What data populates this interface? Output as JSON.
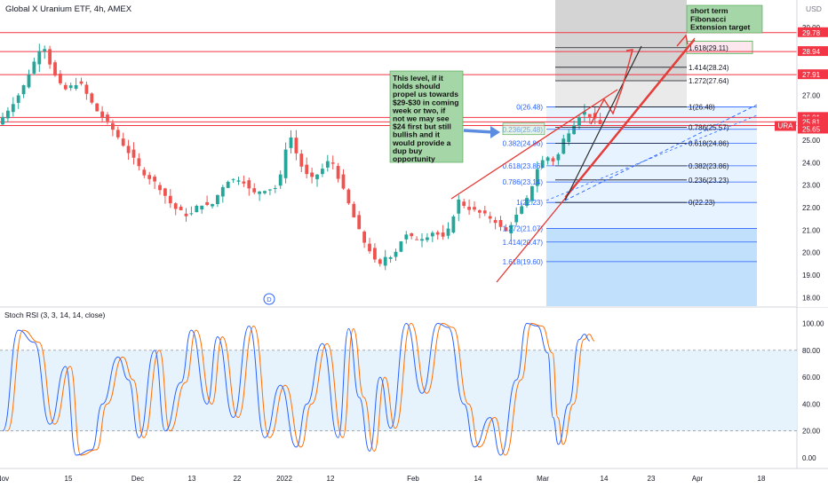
{
  "header": {
    "title": "Global X Uranium ETF, 4h, AMEX",
    "currency": "USD",
    "ticker": "URA",
    "last_price": "25.65"
  },
  "colors": {
    "up": "#26a69a",
    "down": "#ef5350",
    "stoch_k": "#2962ff",
    "stoch_d": "#ff6d00",
    "hline": "#f23645",
    "fib_blue": "#2962ff",
    "note_green": "#a5d6a7",
    "price_tag_red": "#f23645",
    "price_tag_blue": "#2962ff"
  },
  "chart_data": {
    "type": "candlestick",
    "symbol": "URA",
    "timeframe": "4h",
    "ylim": [
      17.6,
      30.4
    ],
    "y_ticks": [
      18,
      19,
      20,
      21,
      22,
      23,
      24,
      25,
      26,
      27,
      28,
      29,
      30
    ],
    "x_ticks": [
      "Nov",
      "15",
      "Dec",
      "13",
      "22",
      "2022",
      "12",
      "Feb",
      "14",
      "Mar",
      "14",
      "23",
      "Apr",
      "18"
    ],
    "close_path": [
      [
        0,
        25.9
      ],
      [
        4,
        27.2
      ],
      [
        7,
        28.8
      ],
      [
        8,
        29.4
      ],
      [
        10,
        28.0
      ],
      [
        12,
        27.2
      ],
      [
        15,
        27.6
      ],
      [
        18,
        26.4
      ],
      [
        21,
        25.6
      ],
      [
        24,
        24.6
      ],
      [
        27,
        23.6
      ],
      [
        30,
        23.0
      ],
      [
        33,
        22.0
      ],
      [
        36,
        21.6
      ],
      [
        38,
        22.2
      ],
      [
        40,
        22.0
      ],
      [
        43,
        23.2
      ],
      [
        46,
        23.3
      ],
      [
        48,
        22.6
      ],
      [
        50,
        22.8
      ],
      [
        53,
        22.9
      ],
      [
        55,
        25.4
      ],
      [
        57,
        24.0
      ],
      [
        59,
        23.2
      ],
      [
        61,
        23.6
      ],
      [
        63,
        24.2
      ],
      [
        65,
        23.0
      ],
      [
        67,
        21.8
      ],
      [
        69,
        20.6
      ],
      [
        71,
        19.9
      ],
      [
        72,
        19.2
      ],
      [
        73,
        19.8
      ],
      [
        75,
        19.9
      ],
      [
        77,
        20.8
      ],
      [
        79,
        20.6
      ],
      [
        81,
        20.7
      ],
      [
        83,
        21.0
      ],
      [
        84,
        20.5
      ],
      [
        86,
        21.2
      ],
      [
        87,
        22.4
      ],
      [
        89,
        22.0
      ],
      [
        91,
        21.8
      ],
      [
        93,
        21.6
      ],
      [
        95,
        21.3
      ],
      [
        96,
        20.8
      ],
      [
        98,
        21.5
      ],
      [
        100,
        22.2
      ],
      [
        101,
        22.6
      ],
      [
        102,
        23.6
      ],
      [
        104,
        24.3
      ],
      [
        106,
        24.0
      ],
      [
        107,
        24.9
      ],
      [
        109,
        25.6
      ],
      [
        111,
        26.3
      ],
      [
        113,
        26.0
      ],
      [
        114,
        25.7
      ]
    ],
    "series": [
      {
        "name": "Stoch RSI (3, 3, 14, 14, close)",
        "k_path": [
          [
            0,
            20
          ],
          [
            3,
            95
          ],
          [
            6,
            86
          ],
          [
            9,
            25
          ],
          [
            12,
            68
          ],
          [
            14,
            2
          ],
          [
            17,
            6
          ],
          [
            19,
            40
          ],
          [
            22,
            75
          ],
          [
            24,
            58
          ],
          [
            26,
            15
          ],
          [
            29,
            80
          ],
          [
            31,
            20
          ],
          [
            34,
            56
          ],
          [
            36,
            95
          ],
          [
            39,
            40
          ],
          [
            41,
            90
          ],
          [
            44,
            30
          ],
          [
            47,
            98
          ],
          [
            50,
            15
          ],
          [
            53,
            54
          ],
          [
            56,
            8
          ],
          [
            58,
            40
          ],
          [
            61,
            85
          ],
          [
            64,
            15
          ],
          [
            66,
            96
          ],
          [
            68,
            45
          ],
          [
            70,
            5
          ],
          [
            72,
            60
          ],
          [
            74,
            22
          ],
          [
            77,
            100
          ],
          [
            80,
            48
          ],
          [
            83,
            100
          ],
          [
            85,
            97
          ],
          [
            88,
            40
          ],
          [
            90,
            8
          ],
          [
            93,
            30
          ],
          [
            95,
            2
          ],
          [
            98,
            58
          ],
          [
            100,
            100
          ],
          [
            102,
            98
          ],
          [
            104,
            78
          ],
          [
            105,
            30
          ],
          [
            106,
            10
          ],
          [
            108,
            40
          ],
          [
            110,
            88
          ],
          [
            111,
            92
          ],
          [
            112,
            87
          ]
        ]
      },
      {
        "name": "",
        "d_path_lag": 1
      }
    ],
    "rsi_ticks": [
      100,
      80,
      60,
      40,
      20,
      0
    ],
    "rsi_band": [
      20,
      80
    ],
    "horizontal_levels": [
      29.78,
      28.94,
      27.91,
      26.01,
      25.81,
      25.65
    ],
    "price_tags": [
      {
        "label": "29.78",
        "value": 29.78,
        "kind": "red"
      },
      {
        "label": "28.94",
        "value": 28.94,
        "kind": "red"
      },
      {
        "label": "27.91",
        "value": 27.91,
        "kind": "red"
      },
      {
        "label": "26.01",
        "value": 26.01,
        "kind": "red"
      },
      {
        "label": "25.81",
        "value": 25.81,
        "kind": "red"
      },
      {
        "label": "URA",
        "value": 25.65,
        "kind": "blue"
      },
      {
        "label": "25.65",
        "value": 25.65,
        "kind": "red"
      }
    ],
    "fib_retracement_left": [
      {
        "label": "0(26.48)",
        "value": 26.48
      },
      {
        "label": "0.236(25.48)",
        "value": 25.48
      },
      {
        "label": "0.382(24.86)",
        "value": 24.86
      },
      {
        "label": "0.618(23.86)",
        "value": 23.86
      },
      {
        "label": "0.786(23.14)",
        "value": 23.14
      },
      {
        "label": "1(22.23)",
        "value": 22.23
      },
      {
        "label": "1.272(21.07)",
        "value": 21.07
      },
      {
        "label": "1.414(20.47)",
        "value": 20.47
      },
      {
        "label": "1.618(19.60)",
        "value": 19.6
      }
    ],
    "fib_extension_right": [
      {
        "label": "1.618(29.11)",
        "value": 29.11
      },
      {
        "label": "1.414(28.24)",
        "value": 28.24
      },
      {
        "label": "1.272(27.64)",
        "value": 27.64
      },
      {
        "label": "1(26.48)",
        "value": 26.48
      },
      {
        "label": "0.786(25.57)",
        "value": 25.57
      },
      {
        "label": "0.618(24.86)",
        "value": 24.86
      },
      {
        "label": "0.382(23.86)",
        "value": 23.86
      },
      {
        "label": "0.236(23.23)",
        "value": 23.23
      },
      {
        "label": "0(22.23)",
        "value": 22.23
      }
    ]
  },
  "annotations": {
    "note_main": [
      "This level, if it",
      "holds should",
      "propel us towards",
      "$29-$30 in coming",
      "week or two, if",
      "not we may see",
      "$24 first but still",
      "bullish and it",
      "would provide a",
      "dup buy",
      "opportunity"
    ],
    "note_target": [
      "short term",
      "Fibonacci",
      "Extension target"
    ],
    "event_marker": "D"
  },
  "stoch": {
    "title": "Stoch RSI (3, 3, 14, 14, close)"
  }
}
